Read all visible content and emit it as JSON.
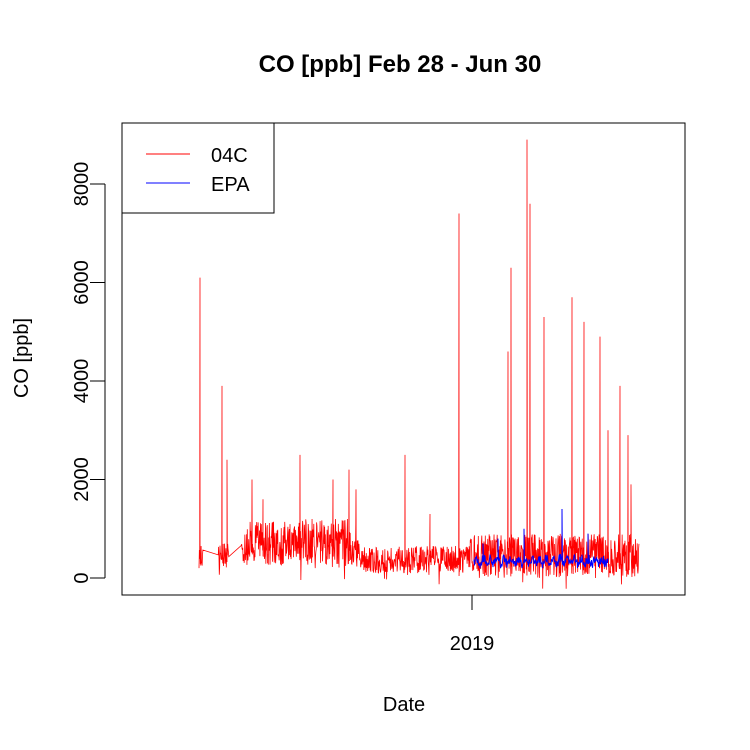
{
  "chart_data": {
    "type": "line",
    "title": "CO [ppb] Feb 28 - Jun 30",
    "xlabel": "Date",
    "ylabel": "CO [ppb]",
    "x_tick_labels": [
      "2019"
    ],
    "y_ticks": [
      0,
      2000,
      4000,
      6000,
      8000
    ],
    "ylim": [
      -300,
      9200
    ],
    "grid": false,
    "legend_position": "top-left",
    "series": [
      {
        "name": "04C",
        "color": "#FF0000",
        "start_date": "Feb 28",
        "end_date": "Jun 30",
        "peaks": [
          6100,
          3900,
          2400,
          2000,
          1600,
          2500,
          2000,
          2200,
          1800,
          2500,
          1300,
          7400,
          4600,
          6300,
          8900,
          7600,
          5300,
          5700,
          5200,
          4900,
          3000,
          3900,
          2900,
          1900
        ]
      },
      {
        "name": "EPA",
        "color": "#0000FF",
        "start_date": "Jan 1, 2019",
        "end_date": "Jun 12",
        "peaks": [
          700,
          800,
          1000,
          1400,
          900
        ]
      }
    ]
  }
}
